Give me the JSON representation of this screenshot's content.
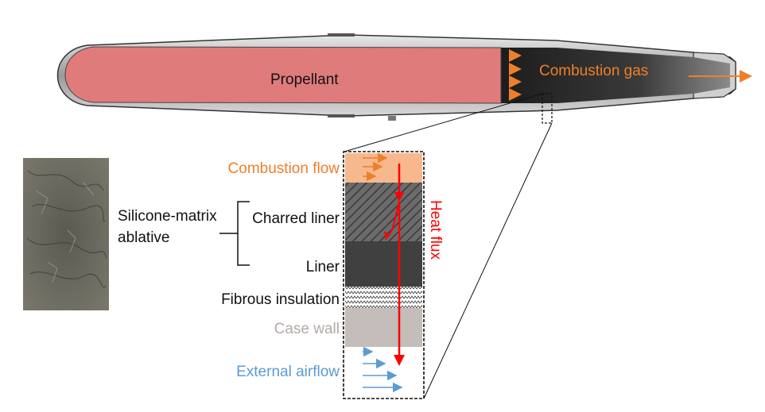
{
  "labels": {
    "propellant": "Propellant",
    "combustion_gas": "Combustion gas",
    "combustion_flow": "Combustion flow",
    "charred_liner": "Charred liner",
    "liner": "Liner",
    "fibrous_insulation": "Fibrous insulation",
    "case_wall": "Case wall",
    "external_airflow": "External airflow",
    "silicone_line1": "Silicone-matrix",
    "silicone_line2": "ablative",
    "heat_flux": "Heat flux"
  },
  "colors": {
    "propellant": "#e07b7b",
    "combustion": "#f07f2a",
    "combustion_flow_fill": "#f7b88e",
    "heat_flux": "#ff0000",
    "case_wall": "#c4bdb9",
    "case_wall_text": "#b3aaa6",
    "liner": "#404040",
    "airflow": "#5b9bd5"
  }
}
